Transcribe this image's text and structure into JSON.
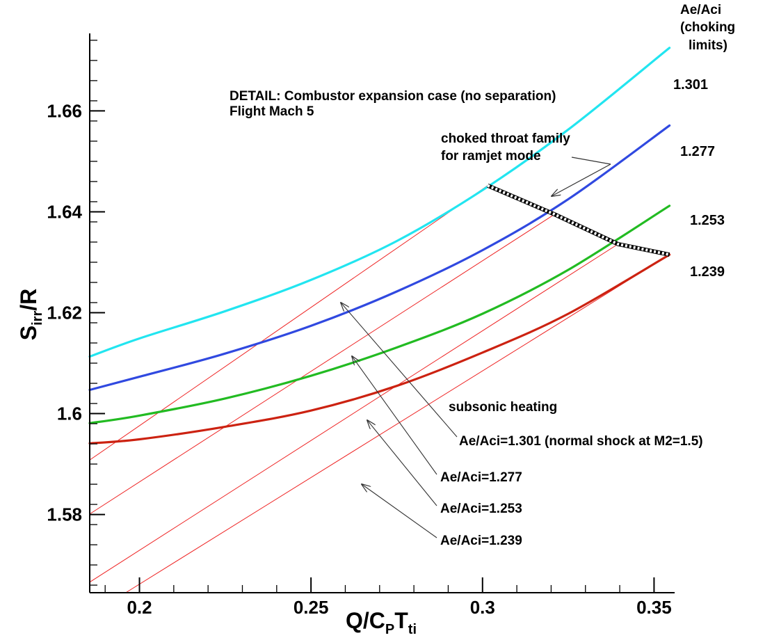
{
  "chart_data": {
    "type": "line",
    "xlabel": {
      "main": "Q/C",
      "sub1": "P",
      "mid": "T",
      "sub2": "ti"
    },
    "ylabel": {
      "main": "S",
      "sub": "irr",
      "tail": "/R"
    },
    "xlim": [
      0.1855,
      0.356
    ],
    "ylim": [
      1.5645,
      1.6755
    ],
    "x_ticks": [
      {
        "value": 0.2,
        "label": "0.2"
      },
      {
        "value": 0.25,
        "label": "0.25"
      },
      {
        "value": 0.3,
        "label": "0.3"
      },
      {
        "value": 0.35,
        "label": "0.35"
      }
    ],
    "y_ticks": [
      {
        "value": 1.58,
        "label": "1.58"
      },
      {
        "value": 1.6,
        "label": "1.6"
      },
      {
        "value": 1.62,
        "label": "1.62"
      },
      {
        "value": 1.64,
        "label": "1.64"
      },
      {
        "value": 1.66,
        "label": "1.66"
      }
    ],
    "grid": false,
    "title_lines": [
      "DETAIL: Combustor expansion case (no separation)",
      "Flight Mach 5"
    ],
    "legend_header": [
      "Ae/Aci",
      "(choking",
      "limits)"
    ],
    "series": [
      {
        "name": "1.301",
        "color": "#22e5f0",
        "x": [
          0.1855,
          0.2,
          0.225,
          0.25,
          0.275,
          0.3,
          0.325,
          0.3545
        ],
        "y": [
          1.6113,
          1.6149,
          1.6203,
          1.6265,
          1.6342,
          1.6443,
          1.6563,
          1.6725
        ]
      },
      {
        "name": "1.277",
        "color": "#3049e0",
        "x": [
          0.1855,
          0.2,
          0.225,
          0.25,
          0.275,
          0.3,
          0.325,
          0.3545
        ],
        "y": [
          1.6047,
          1.6073,
          1.6119,
          1.6174,
          1.6242,
          1.6324,
          1.6425,
          1.6571
        ]
      },
      {
        "name": "1.253",
        "color": "#22bb22",
        "x": [
          0.1855,
          0.2,
          0.225,
          0.25,
          0.275,
          0.3,
          0.325,
          0.3545
        ],
        "y": [
          1.5981,
          1.5996,
          1.603,
          1.6075,
          1.6131,
          1.6198,
          1.6285,
          1.6412
        ]
      },
      {
        "name": "1.239",
        "color": "#cc2211",
        "x": [
          0.1855,
          0.2,
          0.225,
          0.25,
          0.275,
          0.3,
          0.325,
          0.3545
        ],
        "y": [
          1.5941,
          1.5949,
          1.5974,
          1.6006,
          1.6055,
          1.6121,
          1.6198,
          1.6315
        ]
      }
    ],
    "choked_throat_family": {
      "x": [
        0.3015,
        0.321,
        0.3395,
        0.3545
      ],
      "y": [
        1.6452,
        1.6395,
        1.6336,
        1.6315
      ]
    },
    "subsonic_heating_lines": {
      "color": "#ee2222",
      "lines": [
        {
          "x": [
            0.1855,
            0.3015
          ],
          "y": [
            1.5908,
            1.6452
          ]
        },
        {
          "x": [
            0.1855,
            0.321
          ],
          "y": [
            1.5801,
            1.6395
          ]
        },
        {
          "x": [
            0.1855,
            0.3395
          ],
          "y": [
            1.5666,
            1.6336
          ]
        },
        {
          "x": [
            0.196,
            0.3545
          ],
          "y": [
            1.5645,
            1.6315
          ]
        }
      ]
    },
    "annotations": {
      "choked_label": [
        "choked throat family",
        "for ramjet mode"
      ],
      "subsonic_heating": "subsonic heating",
      "arrow_labels": [
        "Ae/Aci=1.301 (normal shock at M2=1.5)",
        "Ae/Aci=1.277",
        "Ae/Aci=1.253",
        "Ae/Aci=1.239"
      ]
    }
  }
}
